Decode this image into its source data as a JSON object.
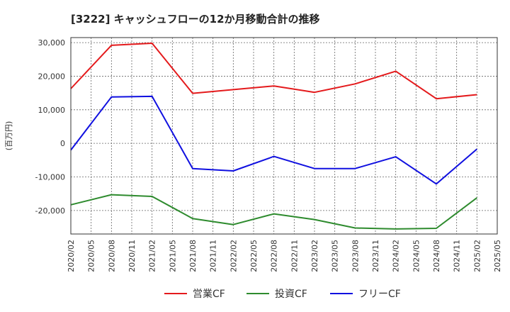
{
  "chart_data": {
    "type": "line",
    "title": "[3222]  キャッシュフローの12か月移動合計の推移",
    "ylabel": "(百万円)",
    "xlabel": "",
    "ylim": [
      -27000,
      31500
    ],
    "yticks": [
      30000,
      20000,
      10000,
      0,
      -10000,
      -20000
    ],
    "ytick_labels": [
      "30,000",
      "20,000",
      "10,000",
      "0",
      "-10,000",
      "-20,000"
    ],
    "categories": [
      "2020/02",
      "2020/05",
      "2020/08",
      "2020/11",
      "2021/02",
      "2021/05",
      "2021/08",
      "2021/11",
      "2022/02",
      "2022/05",
      "2022/08",
      "2022/11",
      "2023/02",
      "2023/05",
      "2023/08",
      "2023/11",
      "2024/02",
      "2024/05",
      "2024/08",
      "2024/11",
      "2025/02",
      "2025/05"
    ],
    "series": [
      {
        "name": "営業CF",
        "color": "#e41a1c",
        "points": [
          [
            "2020/02",
            16300
          ],
          [
            "2020/08",
            29200
          ],
          [
            "2021/02",
            29800
          ],
          [
            "2021/08",
            14900
          ],
          [
            "2022/02",
            16000
          ],
          [
            "2022/08",
            17100
          ],
          [
            "2023/02",
            15200
          ],
          [
            "2023/08",
            17700
          ],
          [
            "2024/02",
            21500
          ],
          [
            "2024/08",
            13300
          ],
          [
            "2025/02",
            14500
          ]
        ]
      },
      {
        "name": "投資CF",
        "color": "#2e8b2e",
        "points": [
          [
            "2020/02",
            -18300
          ],
          [
            "2020/08",
            -15300
          ],
          [
            "2021/02",
            -15800
          ],
          [
            "2021/08",
            -22400
          ],
          [
            "2022/02",
            -24200
          ],
          [
            "2022/08",
            -21000
          ],
          [
            "2023/02",
            -22700
          ],
          [
            "2023/08",
            -25200
          ],
          [
            "2024/02",
            -25500
          ],
          [
            "2024/08",
            -25300
          ],
          [
            "2025/02",
            -16200
          ]
        ]
      },
      {
        "name": "フリーCF",
        "color": "#1010e0",
        "points": [
          [
            "2020/02",
            -2000
          ],
          [
            "2020/08",
            13800
          ],
          [
            "2021/02",
            14000
          ],
          [
            "2021/08",
            -7500
          ],
          [
            "2022/02",
            -8200
          ],
          [
            "2022/08",
            -3900
          ],
          [
            "2023/02",
            -7500
          ],
          [
            "2023/08",
            -7500
          ],
          [
            "2024/02",
            -4000
          ],
          [
            "2024/08",
            -12100
          ],
          [
            "2025/02",
            -1700
          ]
        ]
      }
    ],
    "legend": [
      "営業CF",
      "投資CF",
      "フリーCF"
    ],
    "legend_position": "bottom-center",
    "grid": true
  }
}
